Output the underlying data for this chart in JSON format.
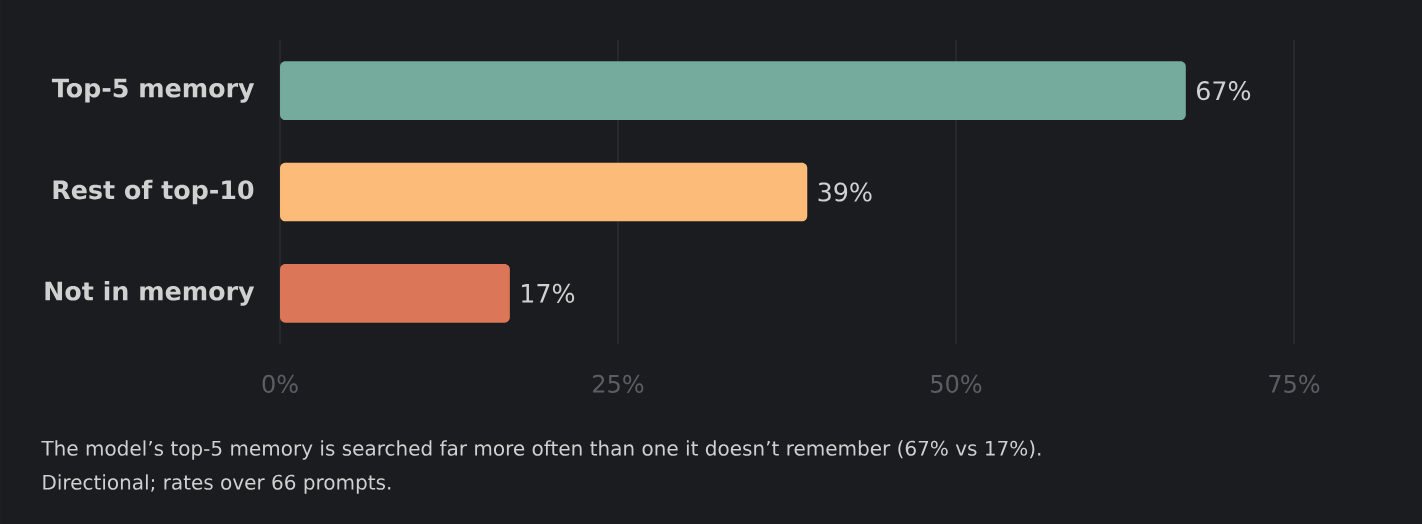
{
  "chart_data": {
    "type": "bar",
    "orientation": "horizontal",
    "categories": [
      "Top-5 memory",
      "Rest of top-10",
      "Not in memory"
    ],
    "values": [
      67,
      39,
      17
    ],
    "colors": [
      "#74ab9c",
      "#fdbb7a",
      "#db7758"
    ],
    "value_labels": [
      "67%",
      "39%",
      "17%"
    ],
    "xlim": [
      0,
      75
    ],
    "xticks": [
      {
        "value": 0,
        "label": "0%"
      },
      {
        "value": 25,
        "label": "25%"
      },
      {
        "value": 50,
        "label": "50%"
      },
      {
        "value": 75,
        "label": "75%"
      }
    ],
    "grid": "x",
    "annotations": [
      "The model’s top-5 memory is searched far more often than one it doesn’t remember (67% vs 17%).",
      "Directional; rates over 66 prompts."
    ]
  }
}
